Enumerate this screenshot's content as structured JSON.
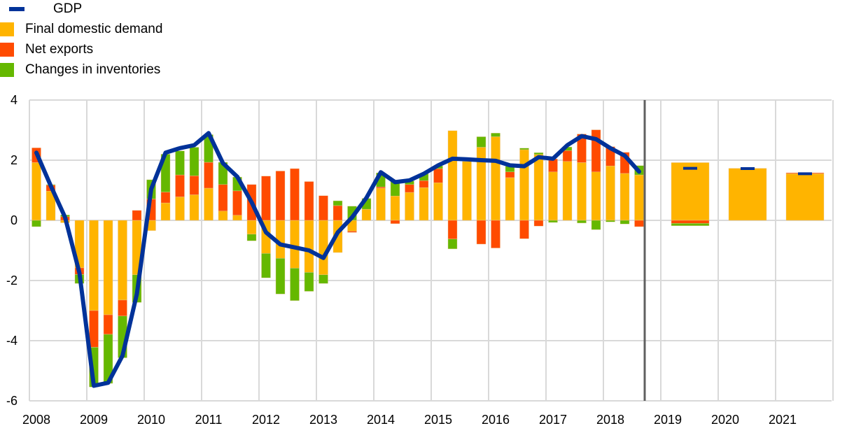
{
  "chart_data": {
    "type": "bar",
    "subtype": "stacked bar with line",
    "title": "",
    "xlabel": "",
    "ylabel": "",
    "ylim": [
      -6,
      4
    ],
    "yticks": [
      "4",
      "2",
      "0",
      "-2",
      "-4",
      "-6"
    ],
    "ytick_values": [
      4,
      2,
      0,
      -2,
      -4,
      -6
    ],
    "xtick_labels": [
      "2008",
      "2009",
      "2010",
      "2011",
      "2012",
      "2013",
      "2014",
      "2015",
      "2016",
      "2017",
      "2018",
      "2019",
      "2020",
      "2021"
    ],
    "grid": true,
    "legend_position": "top-left",
    "colors": {
      "gdp": "#003299",
      "final_domestic_demand": "#FFB400",
      "net_exports": "#FF4B00",
      "changes_in_inventories": "#65B800",
      "grid": "#D9D9D9",
      "divider": "#606060"
    },
    "legend": [
      "GDP",
      "Final domestic demand",
      "Net exports",
      "Changes in inventories"
    ],
    "quarterly": {
      "start": "2008Q1",
      "series": [
        {
          "name": "Final domestic demand",
          "values": [
            1.92,
            0.97,
            -0.08,
            -1.58,
            -3.0,
            -3.14,
            -2.65,
            -1.81,
            -0.34,
            0.58,
            0.78,
            0.85,
            1.07,
            0.31,
            0.17,
            -0.46,
            -1.1,
            -1.26,
            -1.59,
            -1.73,
            -1.81,
            -1.07,
            -0.36,
            0.37,
            1.07,
            0.81,
            0.93,
            1.09,
            1.25,
            2.98,
            1.96,
            2.43,
            2.78,
            1.42,
            2.35,
            2.19,
            1.61,
            1.96,
            1.92,
            1.61,
            1.81,
            1.56,
            1.51
          ]
        },
        {
          "name": "Net exports",
          "values": [
            0.49,
            0.2,
            0.12,
            -0.22,
            -1.22,
            -0.65,
            -0.53,
            0.33,
            0.71,
            0.36,
            0.73,
            0.63,
            0.86,
            0.88,
            0.81,
            1.19,
            1.47,
            1.64,
            1.72,
            1.29,
            0.82,
            0.49,
            -0.04,
            0.0,
            0.04,
            -0.11,
            0.26,
            0.23,
            0.47,
            -0.62,
            0.0,
            -0.79,
            -0.92,
            0.19,
            -0.61,
            -0.19,
            0.43,
            0.36,
            0.95,
            1.4,
            0.64,
            0.7,
            -0.21
          ]
        },
        {
          "name": "Changes in inventories",
          "values": [
            -0.21,
            0.02,
            0.06,
            -0.3,
            -1.32,
            -1.63,
            -1.39,
            -0.92,
            0.64,
            1.26,
            0.8,
            0.95,
            0.92,
            0.74,
            0.46,
            -0.22,
            -0.81,
            -1.19,
            -1.08,
            -0.63,
            -0.29,
            0.16,
            0.47,
            0.36,
            0.47,
            0.53,
            0.12,
            0.23,
            0.09,
            -0.33,
            0.0,
            0.35,
            0.12,
            0.19,
            0.05,
            0.06,
            -0.07,
            0.12,
            -0.09,
            -0.31,
            -0.05,
            -0.12,
            0.31
          ]
        },
        {
          "name": "GDP",
          "values": [
            2.25,
            1.15,
            0.1,
            -1.75,
            -5.5,
            -5.4,
            -4.5,
            -2.45,
            1.04,
            2.25,
            2.4,
            2.5,
            2.9,
            1.9,
            1.45,
            0.6,
            -0.4,
            -0.8,
            -0.9,
            -1.0,
            -1.25,
            -0.4,
            0.1,
            0.75,
            1.6,
            1.27,
            1.33,
            1.55,
            1.83,
            2.05,
            2.03,
            2.0,
            1.98,
            1.83,
            1.8,
            2.1,
            2.05,
            2.5,
            2.8,
            2.7,
            2.4,
            2.15,
            1.62
          ]
        }
      ]
    },
    "annual_projections": {
      "categories": [
        "2019",
        "2020",
        "2021"
      ],
      "series": [
        {
          "name": "Final domestic demand",
          "values": [
            1.92,
            1.73,
            1.55
          ]
        },
        {
          "name": "Net exports",
          "values": [
            -0.1,
            0.0,
            0.03
          ]
        },
        {
          "name": "Changes in inventories",
          "values": [
            -0.08,
            0.0,
            0.0
          ]
        },
        {
          "name": "GDP",
          "values": [
            1.73,
            1.72,
            1.55
          ]
        }
      ]
    }
  }
}
